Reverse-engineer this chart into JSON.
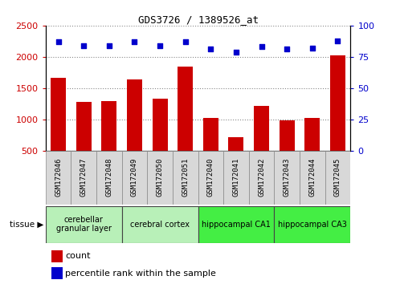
{
  "title": "GDS3726 / 1389526_at",
  "samples": [
    "GSM172046",
    "GSM172047",
    "GSM172048",
    "GSM172049",
    "GSM172050",
    "GSM172051",
    "GSM172040",
    "GSM172041",
    "GSM172042",
    "GSM172043",
    "GSM172044",
    "GSM172045"
  ],
  "counts": [
    1670,
    1275,
    1295,
    1635,
    1335,
    1840,
    1020,
    710,
    1210,
    980,
    1020,
    2020
  ],
  "percentiles": [
    87,
    84,
    84,
    87,
    84,
    87,
    81,
    79,
    83,
    81,
    82,
    88
  ],
  "ylim_left": [
    500,
    2500
  ],
  "ylim_right": [
    0,
    100
  ],
  "yticks_left": [
    500,
    1000,
    1500,
    2000,
    2500
  ],
  "yticks_right": [
    0,
    25,
    50,
    75,
    100
  ],
  "bar_color": "#cc0000",
  "scatter_color": "#0000cc",
  "groups": [
    {
      "label": "cerebellar\ngranular layer",
      "start": 0,
      "end": 3,
      "color": "#b8f0b8"
    },
    {
      "label": "cerebral cortex",
      "start": 3,
      "end": 6,
      "color": "#b8f0b8"
    },
    {
      "label": "hippocampal CA1",
      "start": 6,
      "end": 9,
      "color": "#44ee44"
    },
    {
      "label": "hippocampal CA3",
      "start": 9,
      "end": 12,
      "color": "#44ee44"
    }
  ],
  "legend_count_label": "count",
  "legend_percentile_label": "percentile rank within the sample",
  "bar_color_hex": "#cc0000",
  "dot_color_hex": "#0000cc",
  "sample_box_color": "#d8d8d8",
  "sample_box_edge": "#888888"
}
